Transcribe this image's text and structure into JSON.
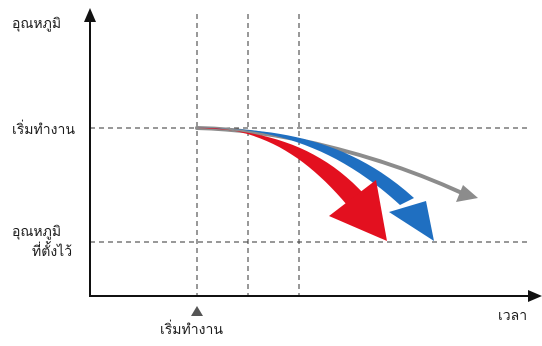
{
  "axes": {
    "y_label": "อุณหภูมิ",
    "x_label": "เวลา"
  },
  "levels": {
    "start_label": "เริ่มทำงาน",
    "set_temp_label_line1": "อุณหภูมิ",
    "set_temp_label_line2": "ที่ตั้งไว้"
  },
  "time_marker": {
    "label": "เริ่มทำงาน"
  },
  "curves": [
    {
      "name": "",
      "color": "#e3101f"
    },
    {
      "name": "",
      "color": "#1f6fc1"
    },
    {
      "name": "",
      "color": "#8c8c8c"
    }
  ]
}
